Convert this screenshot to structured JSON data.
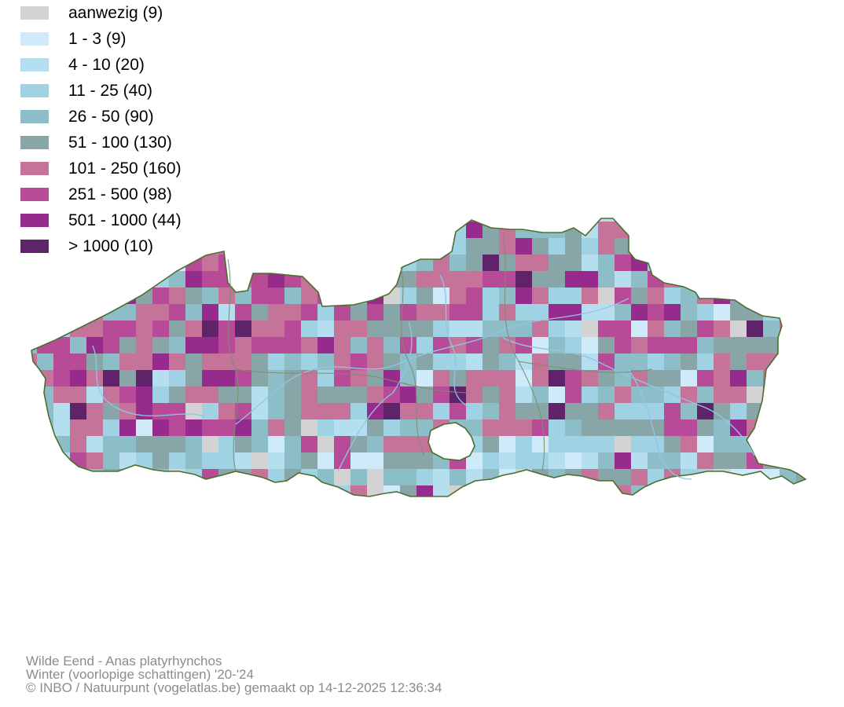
{
  "legend": {
    "items": [
      {
        "label": "aanwezig (9)",
        "color": "#d3d3d3"
      },
      {
        "label": "1 - 3 (9)",
        "color": "#cfeaf8"
      },
      {
        "label": "4 - 10 (20)",
        "color": "#b5dfee"
      },
      {
        "label": "11 - 25 (40)",
        "color": "#9fd2e2"
      },
      {
        "label": "26 - 50 (90)",
        "color": "#8dbec8"
      },
      {
        "label": "51 - 100 (130)",
        "color": "#88a6a8"
      },
      {
        "label": "101 - 250 (160)",
        "color": "#c57399"
      },
      {
        "label": "251 - 500 (98)",
        "color": "#b84b98"
      },
      {
        "label": "501 - 1000 (44)",
        "color": "#962b8d"
      },
      {
        "label": "> 1000 (10)",
        "color": "#5e2368"
      }
    ]
  },
  "map": {
    "border_color": "#4b6e2e",
    "river_color": "#8fc6e6"
  },
  "footer": {
    "species": "Wilde Eend - Anas platyrhynchos",
    "period": "Winter (voorlopige schattingen) '20-'24",
    "credit": "© INBO / Natuurpunt (vogelatlas.be) gemaakt op 14-12-2025 12:36:34"
  }
}
